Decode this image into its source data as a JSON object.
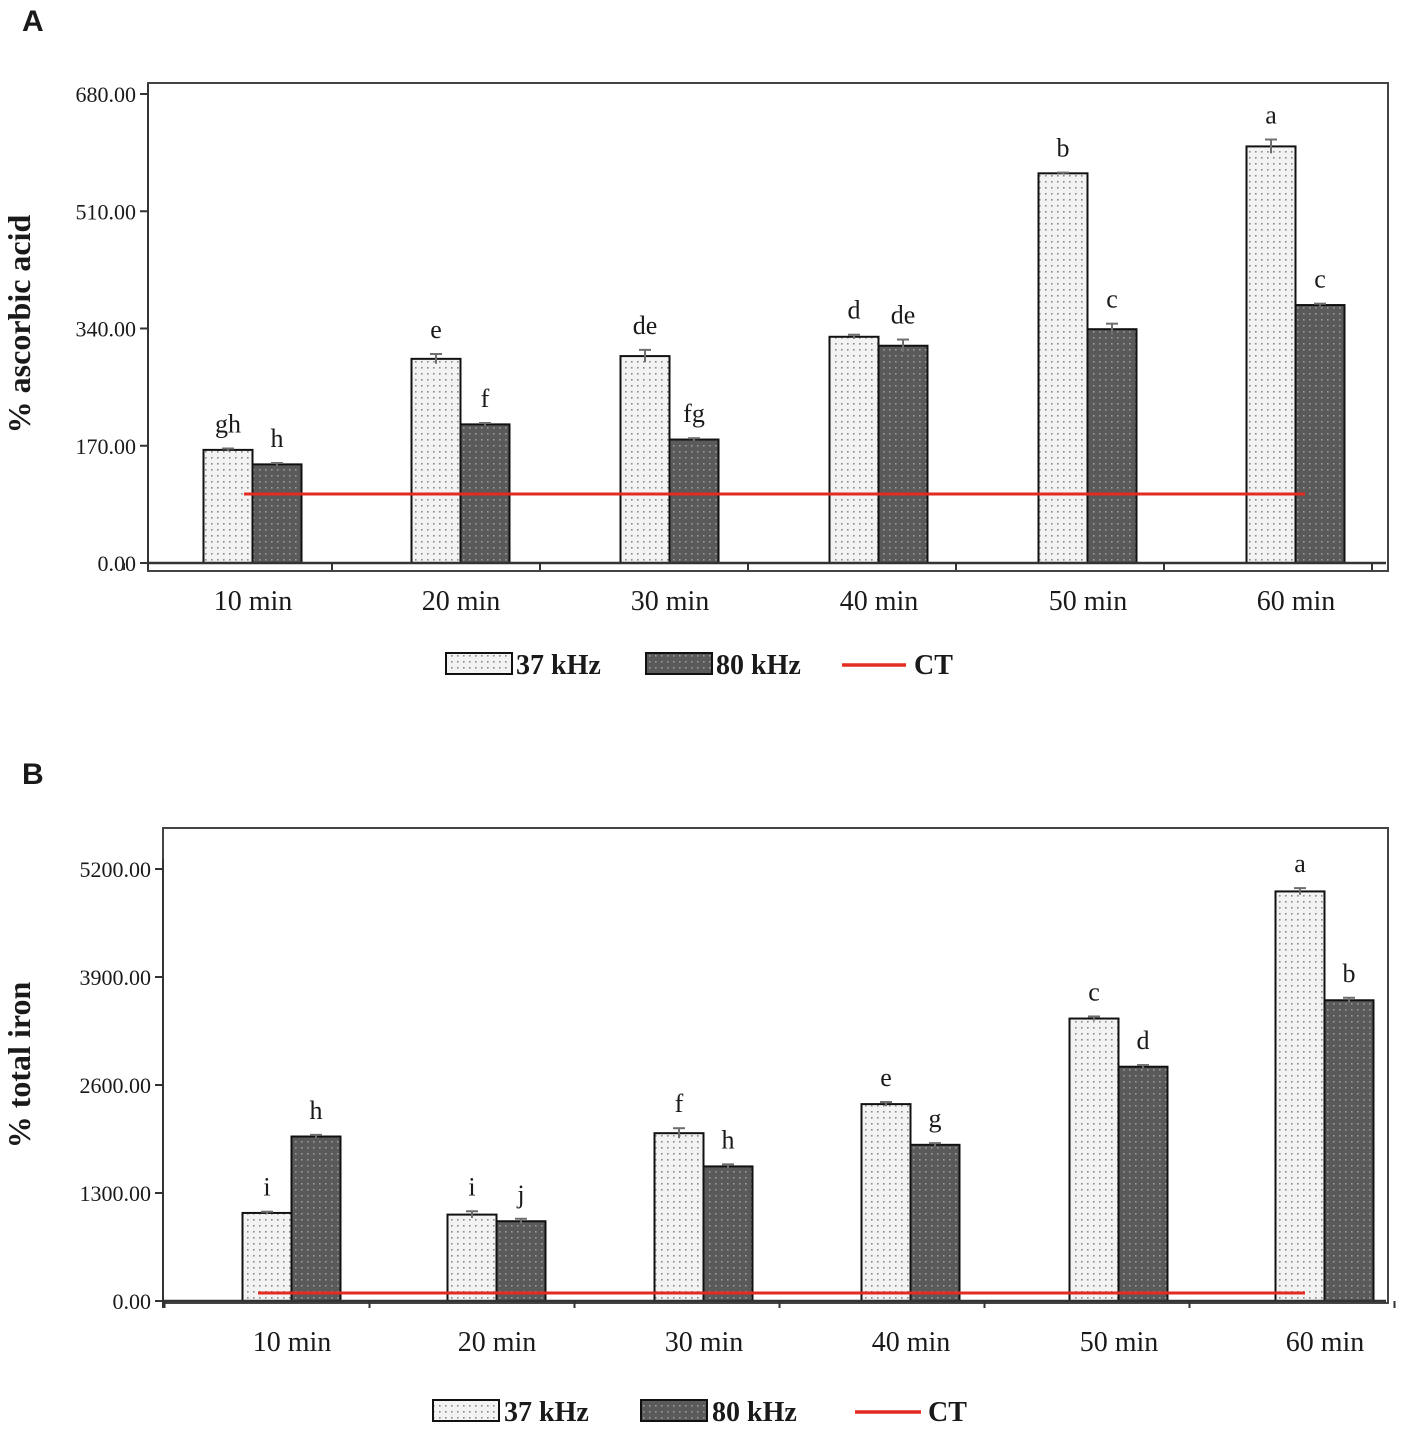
{
  "colors": {
    "bar37": "#f3f3f3",
    "bar37_dots": "#8a8a8a",
    "bar80": "#5a5a5a",
    "bar80_dots": "#9a9a9a",
    "ct_line": "#e32b22",
    "ct_glow": "#ffb27a",
    "axis": "#333333",
    "errorbar": "#6e6e6e"
  },
  "chart_data": [
    {
      "type": "bar",
      "panel": "A",
      "ylabel": "% ascorbic acid",
      "ylim": [
        0,
        680
      ],
      "yticks": [
        0,
        170,
        340,
        510,
        680
      ],
      "ytick_labels": [
        "0.00",
        "170.00",
        "340.00",
        "510.00",
        "680.00"
      ],
      "categories": [
        "10 min",
        "20 min",
        "30 min",
        "40 min",
        "50 min",
        "60 min"
      ],
      "series": [
        {
          "name": "37 kHz",
          "values": [
            164,
            296,
            300,
            328,
            565,
            604
          ],
          "errors": [
            2,
            7,
            9,
            3,
            1,
            10
          ],
          "labels": [
            "gh",
            "e",
            "de",
            "d",
            "b",
            "a"
          ]
        },
        {
          "name": "80 kHz",
          "values": [
            143,
            201,
            179,
            315,
            339,
            374
          ],
          "errors": [
            2,
            2,
            2,
            9,
            8,
            2
          ],
          "labels": [
            "h",
            "f",
            "fg",
            "de",
            "c",
            "c"
          ]
        }
      ],
      "reference_line": {
        "name": "CT",
        "value": 100
      },
      "legend": [
        "37 kHz",
        "80 kHz",
        "CT"
      ],
      "legend_position": "bottom"
    },
    {
      "type": "bar",
      "panel": "B",
      "ylabel": "% total iron",
      "ylim": [
        0,
        5600
      ],
      "yticks": [
        0,
        1300,
        2600,
        3900,
        5200
      ],
      "ytick_labels": [
        "0.00",
        "1300.00",
        "2600.00",
        "3900.00",
        "5200.00"
      ],
      "categories": [
        "10 min",
        "20 min",
        "30 min",
        "40 min",
        "50 min",
        "60 min"
      ],
      "series": [
        {
          "name": "37 kHz",
          "values": [
            1060,
            1040,
            2020,
            2370,
            3400,
            4930
          ],
          "errors": [
            15,
            40,
            60,
            25,
            25,
            40
          ],
          "labels": [
            "i",
            "i",
            "f",
            "e",
            "c",
            "a"
          ]
        },
        {
          "name": "80 kHz",
          "values": [
            1980,
            960,
            1620,
            1880,
            2820,
            3620
          ],
          "errors": [
            20,
            30,
            25,
            20,
            20,
            30
          ],
          "labels": [
            "h",
            "j",
            "h",
            "g",
            "d",
            "b"
          ]
        }
      ],
      "reference_line": {
        "name": "CT",
        "value": 100
      },
      "legend": [
        "37 kHz",
        "80 kHz",
        "CT"
      ],
      "legend_position": "bottom"
    }
  ]
}
